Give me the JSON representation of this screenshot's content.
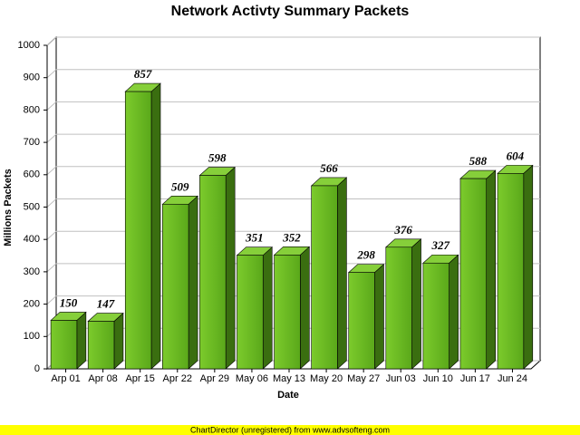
{
  "chart_data": {
    "type": "bar3d",
    "title": "Network Activty Summary Packets",
    "x_label": "Date",
    "y_label": "Millions Packets",
    "categories": [
      "Arp 01",
      "Apr 08",
      "Apr 15",
      "Apr 22",
      "Apr 29",
      "May 06",
      "May 13",
      "May 20",
      "May 27",
      "Jun 03",
      "Jun 10",
      "Jun 17",
      "Jun 24"
    ],
    "values": [
      150,
      147,
      857,
      509,
      598,
      351,
      352,
      566,
      298,
      376,
      327,
      588,
      604
    ],
    "color": "#66bb22",
    "ylim": [
      0,
      1000
    ],
    "yticks": [
      0,
      100,
      200,
      300,
      400,
      500,
      600,
      700,
      800,
      900,
      1000
    ],
    "grid": true
  },
  "footer": "ChartDirector (unregistered) from www.advsofteng.com"
}
